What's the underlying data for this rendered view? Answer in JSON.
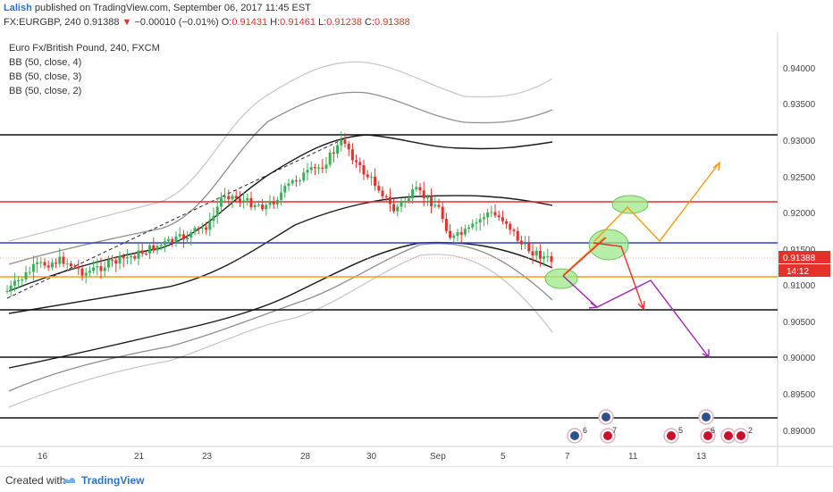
{
  "header": {
    "user": "Lalish",
    "published": "published on TradingView.com, September 06, 2017 11:45 EST",
    "symbol": "FX:EURGBP, 240",
    "last": "0.91388",
    "arrow": "▼",
    "change": "−0.00010 (−0.01%)",
    "o_label": "O:",
    "o_value": "0.91431",
    "h_label": "H:",
    "h_value": "0.91461",
    "l_label": "L:",
    "l_value": "0.91238",
    "c_label": "C:",
    "c_value": "0.91388"
  },
  "legend": {
    "title": "Euro Fx/British Pound, 240, FXCM",
    "items": [
      "BB (50, close, 4)",
      "BB (50, close, 3)",
      "BB (50, close, 2)"
    ]
  },
  "price_axis": {
    "ticks": [
      "0.94000",
      "0.93500",
      "0.93000",
      "0.92500",
      "0.92000",
      "0.91500",
      "0.91000",
      "0.90500",
      "0.90000",
      "0.89500",
      "0.89000"
    ],
    "current_price": "0.91388",
    "countdown": "14:12"
  },
  "time_axis": {
    "ticks": [
      "16",
      "21",
      "23",
      "28",
      "30",
      "Sep",
      "5",
      "7",
      "11",
      "13"
    ]
  },
  "events": [
    "6",
    "7",
    "5",
    "6",
    "2"
  ],
  "footer": {
    "created": "Created with",
    "brand": "TradingView"
  },
  "colors": {
    "up": "#3cae57",
    "down": "#e4312b",
    "red_level": "#e4312b",
    "blue_level": "#3040c0",
    "orange_level": "#f0a010",
    "orange_arrow": "#f39c12",
    "purple_arrow": "#9c27b0",
    "highlight": "#9ee88a",
    "price_label": "#e4312b"
  },
  "chart_data": {
    "type": "candlestick",
    "symbol": "EURGBP",
    "timeframe": "240",
    "ylim": [
      0.8855,
      0.944
    ],
    "x_categories": [
      "16",
      "21",
      "23",
      "28",
      "30",
      "Sep",
      "5",
      "7",
      "11",
      "13"
    ],
    "horizontal_levels": [
      {
        "price": 0.9309,
        "color": "black"
      },
      {
        "price": 0.9216,
        "color": "red"
      },
      {
        "price": 0.9159,
        "color": "blue"
      },
      {
        "price": 0.9112,
        "color": "orange"
      },
      {
        "price": 0.9066,
        "color": "black"
      },
      {
        "price": 0.9,
        "color": "black"
      },
      {
        "price": 0.8916,
        "color": "black"
      }
    ],
    "bollinger_bands": [
      {
        "name": "BB (50, close, 4)",
        "upper_end": 0.9387,
        "lower_end": 0.9036
      },
      {
        "name": "BB (50, close, 3)",
        "upper_end": 0.9342,
        "lower_end": 0.908
      },
      {
        "name": "BB (50, close, 2)",
        "upper_end": 0.9297,
        "lower_end": 0.9124
      }
    ],
    "last_close": 0.91388
  }
}
